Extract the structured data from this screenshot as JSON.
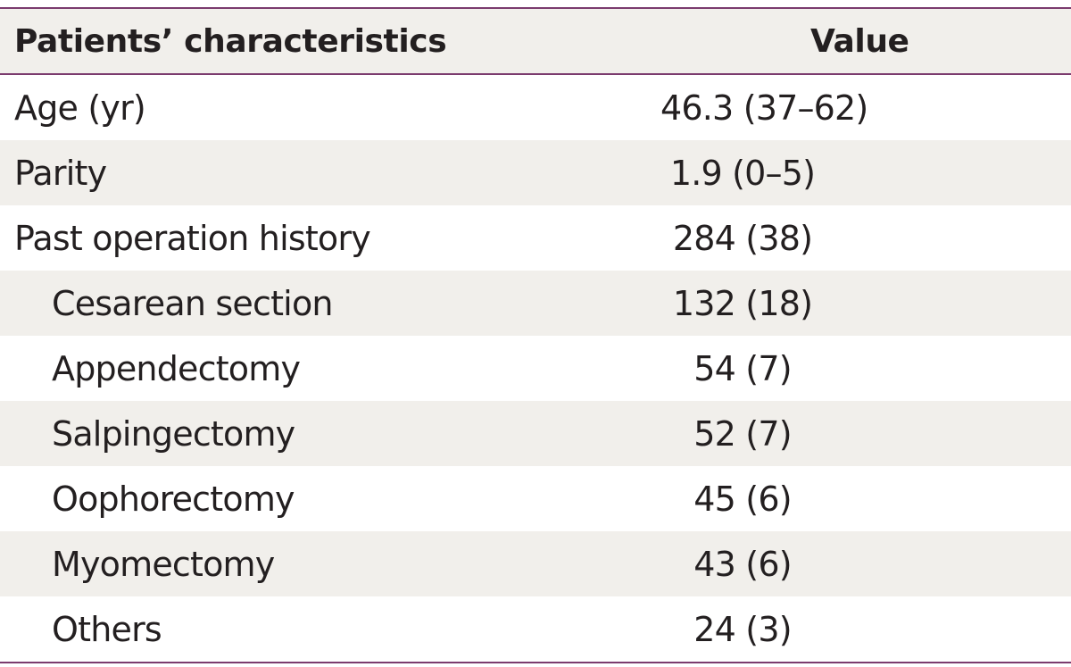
{
  "table": {
    "headers": {
      "characteristic": "Patients’ characteristics",
      "value": "Value"
    },
    "rows": [
      {
        "label": "Age (yr)",
        "value": "46.3 (37–62)",
        "indent": false
      },
      {
        "label": "Parity",
        "value": "1.9 (0–5)",
        "indent": false
      },
      {
        "label": "Past operation history",
        "value": "284 (38)",
        "indent": false
      },
      {
        "label": "Cesarean section",
        "value": "132 (18)",
        "indent": true
      },
      {
        "label": "Appendectomy",
        "value": "54 (7)",
        "indent": true
      },
      {
        "label": "Salpingectomy",
        "value": "52 (7)",
        "indent": true
      },
      {
        "label": "Oophorectomy",
        "value": "45 (6)",
        "indent": true
      },
      {
        "label": "Myomectomy",
        "value": "43 (6)",
        "indent": true
      },
      {
        "label": "Others",
        "value": "24 (3)",
        "indent": true
      }
    ]
  },
  "colors": {
    "rule": "#7b3b6e",
    "shade": "#f1efeb",
    "text": "#231f20"
  }
}
